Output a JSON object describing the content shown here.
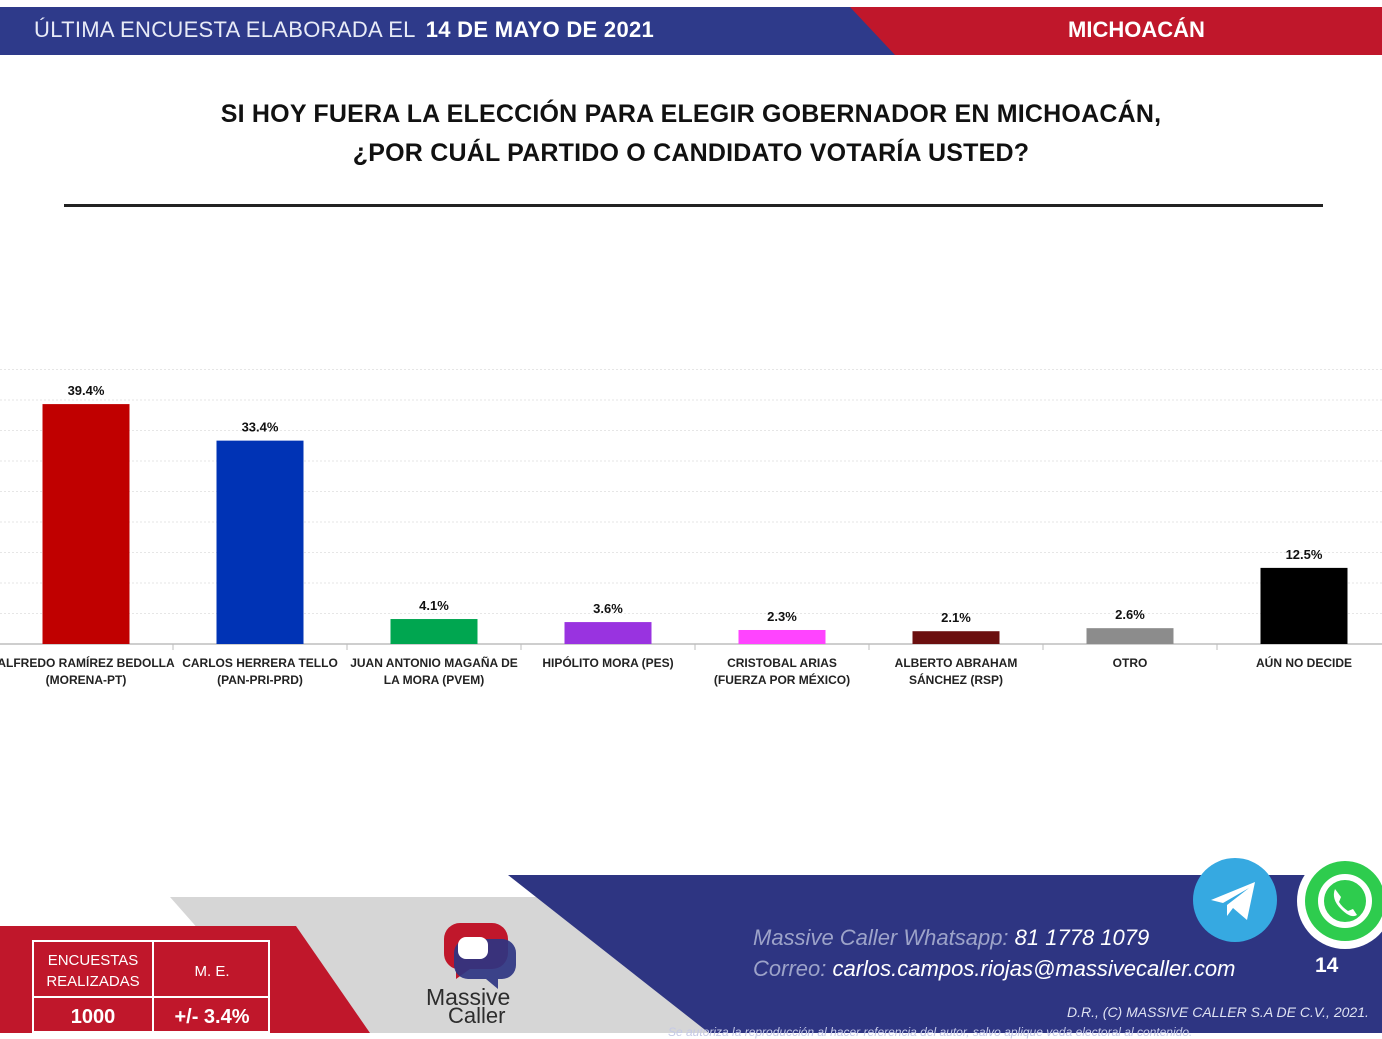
{
  "header": {
    "prefix": "ÚLTIMA ENCUESTA ELABORADA EL",
    "date": "14 DE MAYO DE 2021",
    "state": "MICHOACÁN"
  },
  "question": {
    "line1": "SI HOY FUERA LA ELECCIÓN PARA ELEGIR GOBERNADOR EN MICHOACÁN,",
    "line2": "¿POR CUÁL PARTIDO O CANDIDATO VOTARÍA USTED?"
  },
  "chart_data": {
    "type": "bar",
    "categories": [
      [
        "ALFREDO RAMÍREZ BEDOLLA",
        "(MORENA-PT)"
      ],
      [
        "CARLOS HERRERA TELLO",
        "(PAN-PRI-PRD)"
      ],
      [
        "JUAN ANTONIO MAGAÑA DE",
        "LA MORA (PVEM)"
      ],
      [
        "HIPÓLITO MORA (PES)"
      ],
      [
        "CRISTOBAL ARIAS",
        "(FUERZA POR MÉXICO)"
      ],
      [
        "ALBERTO ABRAHAM",
        "SÁNCHEZ (RSP)"
      ],
      [
        "OTRO"
      ],
      [
        "AÚN NO DECIDE"
      ]
    ],
    "values": [
      39.4,
      33.4,
      4.1,
      3.6,
      2.3,
      2.1,
      2.6,
      12.5
    ],
    "value_labels": [
      "39.4%",
      "33.4%",
      "4.1%",
      "3.6%",
      "2.3%",
      "2.1%",
      "2.6%",
      "12.5%"
    ],
    "colors": [
      "#c00000",
      "#0033b5",
      "#00a650",
      "#9933e0",
      "#ff44ff",
      "#6b0f0f",
      "#8c8c8c",
      "#000000"
    ],
    "ylim": [
      0,
      45
    ],
    "grid": true
  },
  "footer": {
    "stats": {
      "surveys_label_1": "ENCUESTAS",
      "surveys_label_2": "REALIZADAS",
      "surveys_value": "1000",
      "margin_label": "M. E.",
      "margin_value": "+/- 3.4%"
    },
    "logo_line1": "Massive",
    "logo_line2": "Caller",
    "whatsapp_label": "Massive Caller Whatsapp:",
    "whatsapp_number": "81 1778 1079",
    "email_label": "Correo:",
    "email": "carlos.campos.riojas@massivecaller.com",
    "copyright": "D.R., (C) MASSIVE CALLER S.A DE C.V., 2021.",
    "fine_print": "Se autoriza la reproducción al hacer referencia del autor, salvo aplique veda electoral al contenido.",
    "page_number": "14",
    "telegram_icon": "telegram-icon",
    "whatsapp_icon": "whatsapp-icon"
  }
}
